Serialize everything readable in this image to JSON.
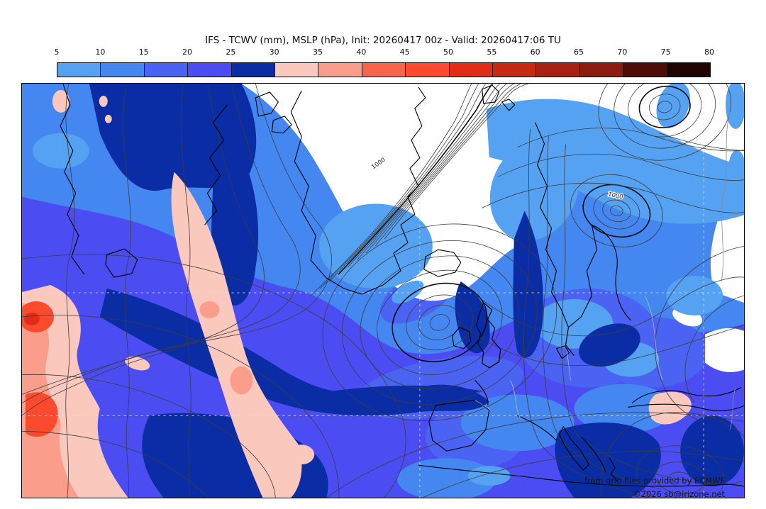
{
  "title": "IFS - TCWV (mm), MSLP (hPa), Init: 20260417 00z - Valid: 20260417:06 TU",
  "colorbar": {
    "unit": "mm",
    "ticks": [
      "5",
      "10",
      "15",
      "20",
      "25",
      "30",
      "35",
      "40",
      "45",
      "50",
      "55",
      "60",
      "65",
      "70",
      "75",
      "80"
    ],
    "segments": [
      {
        "from": 5,
        "to": 10,
        "color": "#55a2f2"
      },
      {
        "from": 10,
        "to": 15,
        "color": "#4487f0"
      },
      {
        "from": 15,
        "to": 20,
        "color": "#4a63f2"
      },
      {
        "from": 20,
        "to": 25,
        "color": "#4b4cf2"
      },
      {
        "from": 25,
        "to": 30,
        "color": "#0a2da6"
      },
      {
        "from": 30,
        "to": 35,
        "color": "#fbc8be"
      },
      {
        "from": 35,
        "to": 40,
        "color": "#fa9d8b"
      },
      {
        "from": 40,
        "to": 45,
        "color": "#f7654a"
      },
      {
        "from": 45,
        "to": 50,
        "color": "#fb4a2e"
      },
      {
        "from": 50,
        "to": 55,
        "color": "#e22d16"
      },
      {
        "from": 55,
        "to": 60,
        "color": "#c62a12"
      },
      {
        "from": 60,
        "to": 65,
        "color": "#a62112"
      },
      {
        "from": 65,
        "to": 70,
        "color": "#8c1c10"
      },
      {
        "from": 70,
        "to": 75,
        "color": "#4e0d07"
      },
      {
        "from": 75,
        "to": 80,
        "color": "#200402"
      }
    ]
  },
  "map": {
    "contour_labels": [
      {
        "text": "1000"
      },
      {
        "text": "1000"
      }
    ],
    "attribution_line1": "from grib files provided by ECMWF",
    "attribution_line2": "©2026 sb@irizone.net"
  },
  "chart_data": {
    "type": "heatmap",
    "title": "IFS - TCWV (mm), MSLP (hPa), Init: 20260417 00z - Valid: 20260417:06 TU",
    "legend_title": "TCWV (mm)",
    "levels": [
      5,
      10,
      15,
      20,
      25,
      30,
      35,
      40,
      45,
      50,
      55,
      60,
      65,
      70,
      75,
      80
    ],
    "level_colors": [
      "#55a2f2",
      "#4487f0",
      "#4a63f2",
      "#4b4cf2",
      "#0a2da6",
      "#fbc8be",
      "#fa9d8b",
      "#f7654a",
      "#fb4a2e",
      "#e22d16",
      "#c62a12",
      "#a62112",
      "#8c1c10",
      "#4e0d07",
      "#200402"
    ],
    "overlay": "MSLP contours (hPa), labeled value 1000"
  }
}
